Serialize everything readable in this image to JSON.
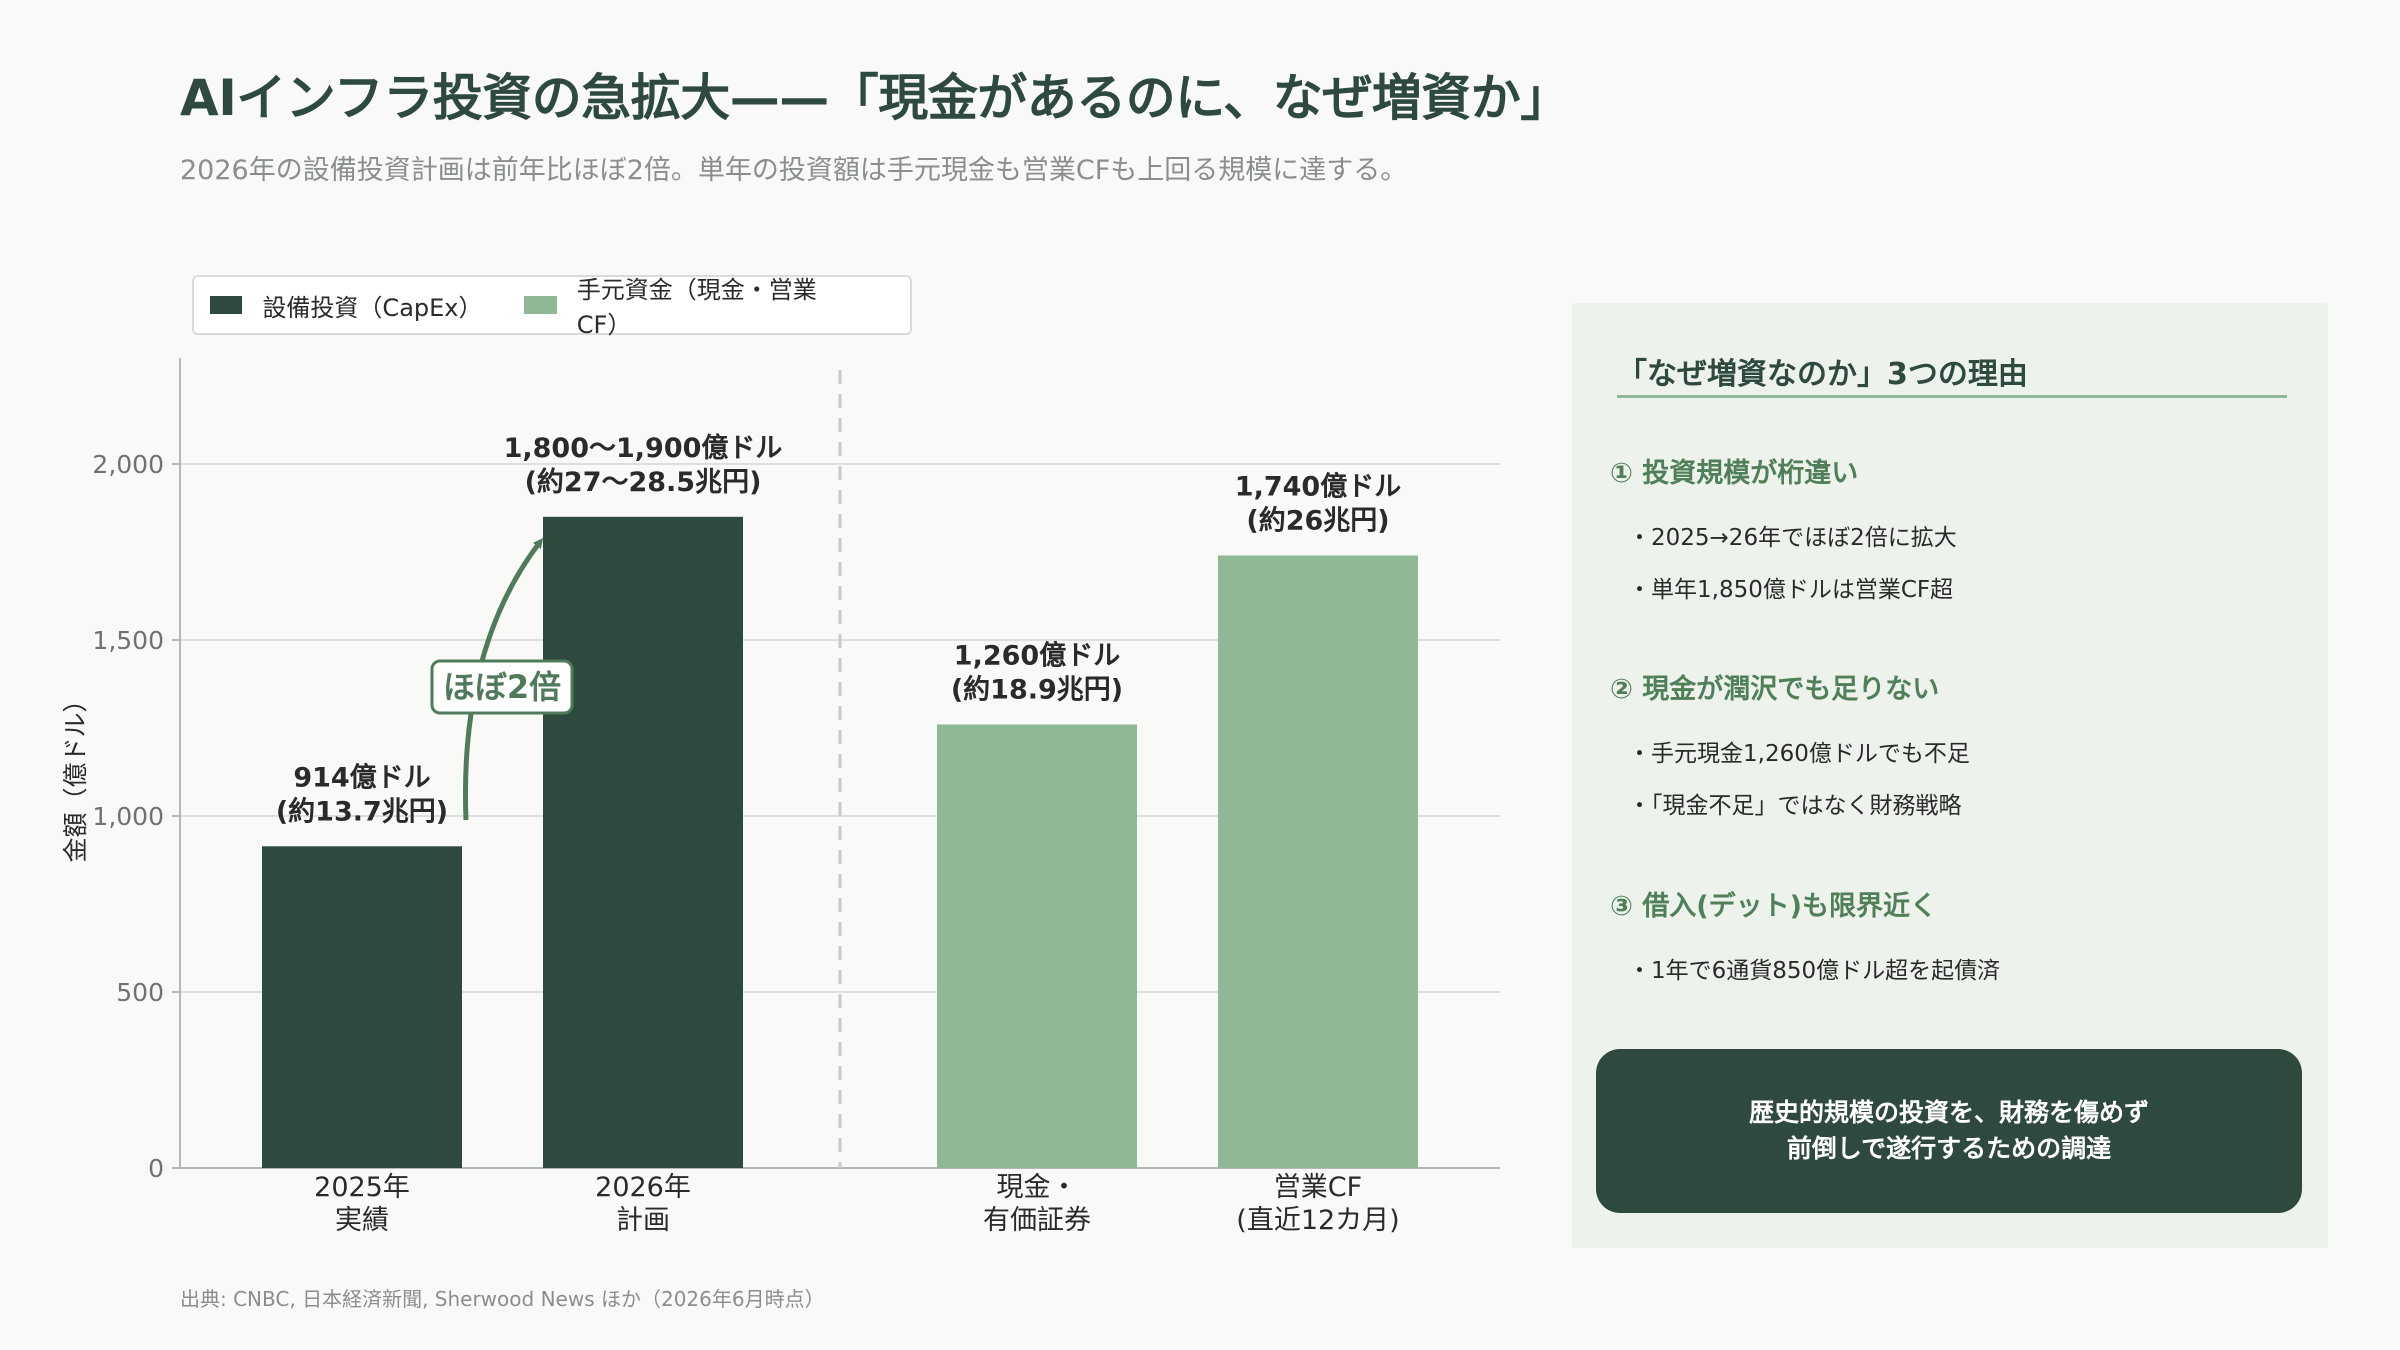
{
  "title": "AIインフラ投資の急拡大——「現金があるのに、なぜ増資か」",
  "subtitle": "2026年の設備投資計画は前年比ほぼ2倍。単年の投資額は手元現金も営業CFも上回る規模に達する。",
  "source": "出典: CNBC, 日本経済新聞, Sherwood News ほか（2026年6月時点）",
  "legend": [
    {
      "label": "設備投資（CapEx）",
      "color": "#2e4a3e"
    },
    {
      "label": "手元資金（現金・営業CF）",
      "color": "#8fb996"
    }
  ],
  "chart_data": {
    "type": "bar",
    "ylabel": "金額（億ドル）",
    "ylim": [
      0,
      2300
    ],
    "yticks": [
      0,
      500,
      1000,
      1500,
      2000
    ],
    "grid": true,
    "legend_position": "top-left",
    "categories": [
      {
        "label": [
          "2025年",
          "実績"
        ],
        "value": 914,
        "series": "設備投資（CapEx）",
        "annotation": [
          "914億ドル",
          "(約13.7兆円)"
        ]
      },
      {
        "label": [
          "2026年",
          "計画"
        ],
        "value": 1850,
        "series": "設備投資（CapEx）",
        "annotation": [
          "1,800〜1,900億ドル",
          "(約27〜28.5兆円)"
        ]
      },
      {
        "label": [
          "現金・",
          "有価証券"
        ],
        "value": 1260,
        "series": "手元資金（現金・営業CF）",
        "annotation": [
          "1,260億ドル",
          "(約18.9兆円)"
        ]
      },
      {
        "label": [
          "営業CF",
          "(直近12カ月)"
        ],
        "value": 1740,
        "series": "手元資金（現金・営業CF）",
        "annotation": [
          "1,740億ドル",
          "(約26兆円)"
        ]
      }
    ],
    "growth_callout": "ほぼ2倍"
  },
  "panel": {
    "title": "「なぜ増資なのか」3つの理由",
    "reasons": [
      {
        "title": "① 投資規模が桁違い",
        "bullets": [
          "・2025→26年でほぼ2倍に拡大",
          "・単年1,850億ドルは営業CF超"
        ]
      },
      {
        "title": "② 現金が潤沢でも足りない",
        "bullets": [
          "・手元現金1,260億ドルでも不足",
          "・「現金不足」ではなく財務戦略"
        ]
      },
      {
        "title": "③ 借入(デット)も限界近く",
        "bullets": [
          "・1年で6通貨850億ドル超を起債済"
        ]
      }
    ],
    "conclusion": "歴史的規模の投資を、財務を傷めず\n前倒しで遂行するための調達"
  }
}
